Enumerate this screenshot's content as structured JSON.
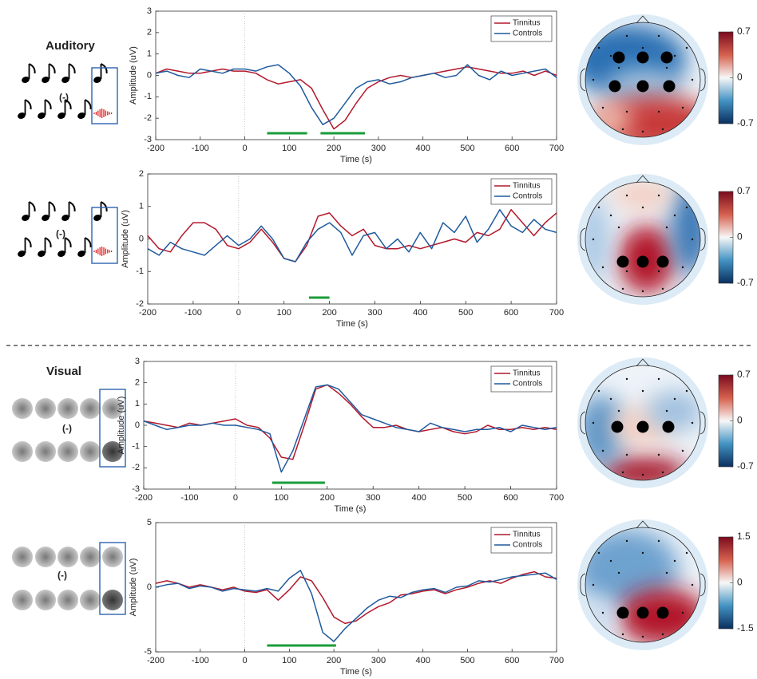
{
  "sections": [
    {
      "title": "Auditory"
    },
    {
      "title": "Visual"
    }
  ],
  "icons": [
    {
      "label": "(-)"
    },
    {
      "label": "(-)"
    },
    {
      "label": "(-)"
    },
    {
      "label": "(-)"
    }
  ],
  "chart_data": [
    {
      "type": "line",
      "xlabel": "Time (s)",
      "ylabel": "Amplitude (uV)",
      "x": [
        -200,
        -175,
        -150,
        -125,
        -100,
        -75,
        -50,
        -25,
        0,
        25,
        50,
        75,
        100,
        125,
        150,
        175,
        200,
        225,
        250,
        275,
        300,
        325,
        350,
        375,
        400,
        425,
        450,
        475,
        500,
        525,
        550,
        575,
        600,
        625,
        650,
        675,
        700
      ],
      "series": [
        {
          "name": "Tinnitus",
          "color": "#b2182b",
          "values": [
            0.1,
            0.3,
            0.2,
            0.1,
            0.1,
            0.2,
            0.3,
            0.2,
            0.2,
            0.1,
            -0.2,
            -0.4,
            -0.3,
            -0.2,
            -0.6,
            -1.6,
            -2.5,
            -2.1,
            -1.3,
            -0.6,
            -0.3,
            -0.1,
            0,
            -0.1,
            0,
            0.1,
            0.2,
            0.3,
            0.4,
            0.3,
            0.2,
            0.1,
            0.1,
            0.2,
            0,
            0.2,
            0
          ]
        },
        {
          "name": "Controls",
          "color": "#1f5a9e",
          "values": [
            0.1,
            0.2,
            0,
            -0.1,
            0.3,
            0.2,
            0.1,
            0.3,
            0.3,
            0.2,
            0.4,
            0.5,
            0.1,
            -0.5,
            -1.5,
            -2.3,
            -2,
            -1.3,
            -0.6,
            -0.3,
            -0.2,
            -0.4,
            -0.3,
            -0.1,
            0,
            0.1,
            -0.1,
            0,
            0.5,
            0,
            -0.2,
            0.2,
            0,
            0.1,
            0.2,
            0.3,
            -0.1
          ]
        }
      ],
      "xlim": [
        -200,
        700
      ],
      "ylim": [
        -3,
        3
      ],
      "xticks": [
        -200,
        -100,
        0,
        100,
        200,
        300,
        400,
        500,
        600,
        700
      ],
      "yticks": [
        -3,
        -2,
        -1,
        0,
        1,
        2,
        3
      ],
      "legend": "upper right",
      "significance_windows": [
        [
          50,
          140
        ],
        [
          170,
          270
        ]
      ],
      "significance_color": "#1a9c3a"
    },
    {
      "type": "line",
      "xlabel": "Time (s)",
      "ylabel": "Amplitude (uV)",
      "x": [
        -200,
        -175,
        -150,
        -125,
        -100,
        -75,
        -50,
        -25,
        0,
        25,
        50,
        75,
        100,
        125,
        150,
        175,
        200,
        225,
        250,
        275,
        300,
        325,
        350,
        375,
        400,
        425,
        450,
        475,
        500,
        525,
        550,
        575,
        600,
        625,
        650,
        675,
        700
      ],
      "series": [
        {
          "name": "Tinnitus",
          "color": "#b2182b",
          "values": [
            0.1,
            -0.3,
            -0.4,
            0.1,
            0.5,
            0.5,
            0.3,
            -0.2,
            -0.3,
            -0.1,
            0.3,
            -0.1,
            -0.6,
            -0.7,
            -0.2,
            0.7,
            0.8,
            0.4,
            0.1,
            0.3,
            -0.2,
            -0.3,
            -0.3,
            -0.2,
            -0.3,
            -0.2,
            -0.1,
            0,
            -0.1,
            0.2,
            0.1,
            0.3,
            0.9,
            0.5,
            0.1,
            0.5,
            0.8
          ]
        },
        {
          "name": "Controls",
          "color": "#1f5a9e",
          "values": [
            -0.3,
            -0.5,
            -0.1,
            -0.3,
            -0.4,
            -0.5,
            -0.2,
            0.1,
            -0.2,
            0,
            0.4,
            0,
            -0.6,
            -0.7,
            -0.1,
            0.3,
            0.5,
            0.2,
            -0.5,
            0.1,
            0.2,
            -0.3,
            0,
            -0.4,
            0.2,
            -0.3,
            0.5,
            0.2,
            0.7,
            -0.1,
            0.3,
            0.9,
            0.4,
            0.2,
            0.6,
            0.3,
            0.2
          ]
        }
      ],
      "xlim": [
        -200,
        700
      ],
      "ylim": [
        -2,
        2
      ],
      "xticks": [
        -200,
        -100,
        0,
        100,
        200,
        300,
        400,
        500,
        600,
        700
      ],
      "yticks": [
        -2,
        -1,
        0,
        1,
        2
      ],
      "legend": "upper right",
      "significance_windows": [
        [
          155,
          200
        ]
      ],
      "significance_color": "#1a9c3a"
    },
    {
      "type": "line",
      "xlabel": "Time (s)",
      "ylabel": "Amplitude (uV)",
      "x": [
        -200,
        -175,
        -150,
        -125,
        -100,
        -75,
        -50,
        -25,
        0,
        25,
        50,
        75,
        100,
        125,
        150,
        175,
        200,
        225,
        250,
        275,
        300,
        325,
        350,
        375,
        400,
        425,
        450,
        475,
        500,
        525,
        550,
        575,
        600,
        625,
        650,
        675,
        700
      ],
      "series": [
        {
          "name": "Tinnitus",
          "color": "#b2182b",
          "values": [
            0.2,
            0.1,
            0,
            -0.1,
            0.1,
            0,
            0.1,
            0.2,
            0.3,
            0,
            -0.1,
            -0.6,
            -1.5,
            -1.6,
            0,
            1.7,
            1.9,
            1.5,
            1,
            0.4,
            -0.1,
            -0.1,
            0,
            -0.2,
            -0.3,
            -0.2,
            -0.1,
            -0.3,
            -0.4,
            -0.3,
            0,
            -0.2,
            -0.2,
            -0.1,
            -0.2,
            -0.1,
            -0.2
          ]
        },
        {
          "name": "Controls",
          "color": "#1f5a9e",
          "values": [
            0.2,
            0,
            -0.2,
            -0.1,
            0,
            0,
            0.1,
            0,
            0,
            -0.1,
            -0.2,
            -0.4,
            -2.2,
            -1.2,
            0.3,
            1.8,
            1.9,
            1.7,
            1.1,
            0.5,
            0.3,
            0.1,
            -0.1,
            -0.2,
            -0.3,
            0.1,
            -0.1,
            -0.2,
            -0.3,
            -0.2,
            -0.2,
            -0.1,
            -0.3,
            0,
            -0.1,
            -0.2,
            -0.1
          ]
        }
      ],
      "xlim": [
        -200,
        700
      ],
      "ylim": [
        -3,
        3
      ],
      "xticks": [
        -200,
        -100,
        0,
        100,
        200,
        300,
        400,
        500,
        600,
        700
      ],
      "yticks": [
        -3,
        -2,
        -1,
        0,
        1,
        2,
        3
      ],
      "legend": "upper right",
      "significance_windows": [
        [
          80,
          195
        ]
      ],
      "significance_color": "#1a9c3a"
    },
    {
      "type": "line",
      "xlabel": "Time (s)",
      "ylabel": "Amplitude (uV)",
      "x": [
        -200,
        -175,
        -150,
        -125,
        -100,
        -75,
        -50,
        -25,
        0,
        25,
        50,
        75,
        100,
        125,
        150,
        175,
        200,
        225,
        250,
        275,
        300,
        325,
        350,
        375,
        400,
        425,
        450,
        475,
        500,
        525,
        550,
        575,
        600,
        625,
        650,
        675,
        700
      ],
      "series": [
        {
          "name": "Tinnitus",
          "color": "#b2182b",
          "values": [
            0.3,
            0.5,
            0.3,
            0,
            0.2,
            0,
            -0.2,
            0,
            -0.3,
            -0.4,
            -0.2,
            -1,
            -0.2,
            0.8,
            0.5,
            -0.8,
            -2.3,
            -2.8,
            -2.6,
            -2,
            -1.5,
            -1.2,
            -0.6,
            -0.5,
            -0.3,
            -0.2,
            -0.5,
            -0.2,
            0,
            0.3,
            0.5,
            0.3,
            0.7,
            1,
            1.2,
            0.8,
            0.7
          ]
        },
        {
          "name": "Controls",
          "color": "#1f5a9e",
          "values": [
            0,
            0.2,
            0.3,
            -0.1,
            0.1,
            0,
            -0.3,
            -0.1,
            -0.2,
            -0.3,
            -0.1,
            -0.3,
            0.7,
            1.3,
            -0.5,
            -3.5,
            -4.2,
            -3.2,
            -2.4,
            -1.6,
            -1,
            -0.7,
            -0.8,
            -0.4,
            -0.2,
            -0.1,
            -0.4,
            0,
            0.1,
            0.5,
            0.4,
            0.6,
            0.8,
            0.9,
            1,
            1.1,
            0.6
          ]
        }
      ],
      "xlim": [
        -200,
        700
      ],
      "ylim": [
        -5,
        5
      ],
      "xticks": [
        -200,
        -100,
        0,
        100,
        200,
        300,
        400,
        500,
        600,
        700
      ],
      "yticks": [
        -5,
        0,
        5
      ],
      "legend": "upper right",
      "significance_windows": [
        [
          50,
          205
        ]
      ],
      "significance_color": "#1a9c3a"
    }
  ],
  "topomaps": [
    {
      "clim": [
        -0.7,
        0.7
      ],
      "ticks": [
        0.7,
        0,
        -0.7
      ]
    },
    {
      "clim": [
        -0.7,
        0.7
      ],
      "ticks": [
        0.7,
        0,
        -0.7
      ]
    },
    {
      "clim": [
        -0.7,
        0.7
      ],
      "ticks": [
        0.7,
        0,
        -0.7
      ]
    },
    {
      "clim": [
        -1.5,
        1.5
      ],
      "ticks": [
        1.5,
        0,
        -1.5
      ]
    }
  ]
}
